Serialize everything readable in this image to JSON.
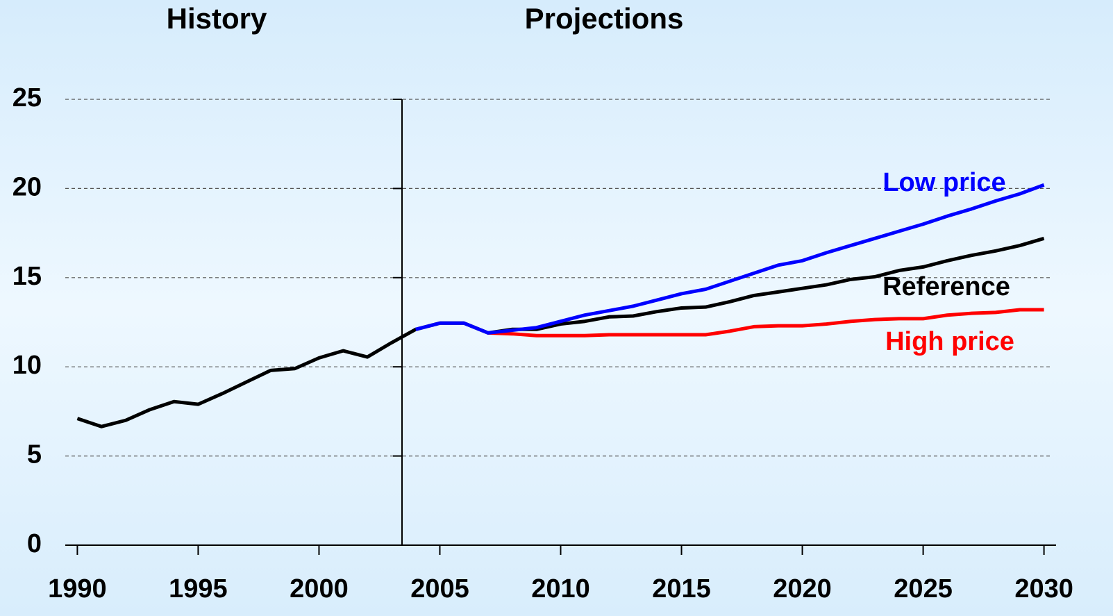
{
  "chart_data": {
    "type": "line",
    "annotations": [
      "History",
      "Projections"
    ],
    "x": [
      1990,
      1991,
      1992,
      1993,
      1994,
      1995,
      1996,
      1997,
      1998,
      1999,
      2000,
      2001,
      2002,
      2003,
      2004,
      2005,
      2006,
      2007,
      2008,
      2009,
      2010,
      2011,
      2012,
      2013,
      2014,
      2015,
      2016,
      2017,
      2018,
      2019,
      2020,
      2021,
      2022,
      2023,
      2024,
      2025,
      2026,
      2027,
      2028,
      2029,
      2030
    ],
    "series": [
      {
        "name": "Reference",
        "color": "#000000",
        "values": [
          7.1,
          6.65,
          7.0,
          7.6,
          8.05,
          7.9,
          8.5,
          9.15,
          9.8,
          9.9,
          10.5,
          10.9,
          10.55,
          11.35,
          12.1,
          12.45,
          12.45,
          11.9,
          12.1,
          12.1,
          12.4,
          12.55,
          12.8,
          12.85,
          13.1,
          13.3,
          13.35,
          13.65,
          14.0,
          14.2,
          14.4,
          14.6,
          14.9,
          15.05,
          15.4,
          15.6,
          15.95,
          16.25,
          16.5,
          16.8,
          17.2
        ]
      },
      {
        "name": "High price",
        "color": "#ff0000",
        "values": [
          null,
          null,
          null,
          null,
          null,
          null,
          null,
          null,
          null,
          null,
          null,
          null,
          null,
          null,
          null,
          null,
          null,
          11.9,
          11.85,
          11.75,
          11.75,
          11.75,
          11.8,
          11.8,
          11.8,
          11.8,
          11.8,
          12.0,
          12.25,
          12.3,
          12.3,
          12.4,
          12.55,
          12.65,
          12.7,
          12.7,
          12.9,
          13.0,
          13.05,
          13.2,
          13.2
        ]
      },
      {
        "name": "Low price",
        "color": "#0000ff",
        "values": [
          null,
          null,
          null,
          null,
          null,
          null,
          null,
          null,
          null,
          null,
          null,
          null,
          null,
          null,
          12.1,
          12.45,
          12.45,
          11.9,
          12.05,
          12.2,
          12.55,
          12.9,
          13.15,
          13.4,
          13.75,
          14.1,
          14.35,
          14.8,
          15.25,
          15.7,
          15.95,
          16.4,
          16.8,
          17.2,
          17.6,
          18.0,
          18.45,
          18.85,
          19.3,
          19.7,
          20.2
        ]
      }
    ],
    "xlim": [
      1989.5,
      2030.5
    ],
    "xticks": [
      1990,
      1995,
      2000,
      2005,
      2010,
      2015,
      2020,
      2025,
      2030
    ],
    "ylim": [
      0,
      25
    ],
    "yticks": [
      0,
      5,
      10,
      15,
      20,
      25
    ],
    "grid": true
  }
}
